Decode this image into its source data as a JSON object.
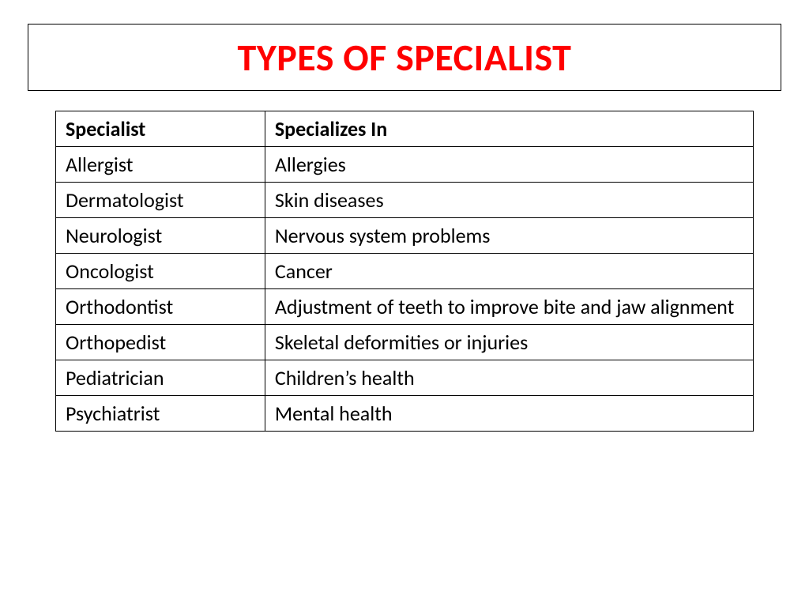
{
  "title": "TYPES OF SPECIALIST",
  "table": {
    "columns": [
      "Specialist",
      "Specializes In"
    ],
    "column_widths": [
      "30%",
      "70%"
    ],
    "rows": [
      [
        "Allergist",
        "Allergies"
      ],
      [
        "Dermatologist",
        "Skin diseases"
      ],
      [
        "Neurologist",
        "Nervous system problems"
      ],
      [
        "Oncologist",
        "Cancer"
      ],
      [
        "Orthodontist",
        "Adjustment of teeth to improve bite and jaw alignment"
      ],
      [
        "Orthopedist",
        "Skeletal deformities or injuries"
      ],
      [
        "Pediatrician",
        "Children’s health"
      ],
      [
        "Psychiatrist",
        "Mental health"
      ]
    ]
  },
  "styling": {
    "title_color": "#ff0000",
    "title_fontsize": 48,
    "title_fontweight": "bold",
    "title_border_color": "#000000",
    "body_background": "#ffffff",
    "table_border_color": "#000000",
    "table_fontsize": 26,
    "table_text_color": "#000000",
    "header_fontweight": "bold",
    "font_family": "Calibri, Arial, sans-serif"
  }
}
